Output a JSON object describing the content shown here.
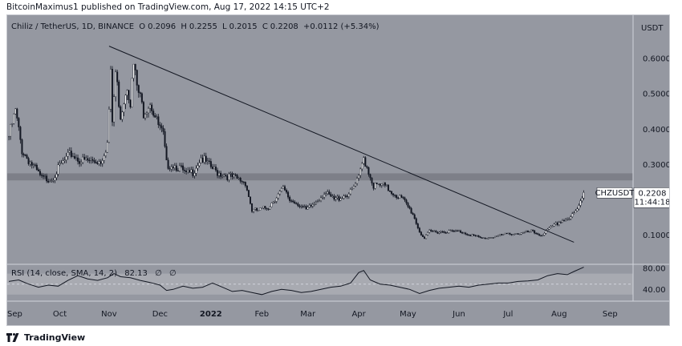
{
  "header": {
    "publisher_line": "BitcoinMaximus1 published on TradingView.com, Aug 17, 2022 14:15 UTC+2"
  },
  "symbol": {
    "name": "Chiliz / TetherUS, 1D, BINANCE",
    "open_label": "O",
    "open": "0.2096",
    "high_label": "H",
    "high": "0.2255",
    "low_label": "L",
    "low": "0.2015",
    "close_label": "C",
    "close": "0.2208",
    "change": "+0.0112 (+5.34%)"
  },
  "price_badge": {
    "ticker": "CHZUSDT",
    "price": "0.2208",
    "countdown": "11:44:18",
    "color": "#ffffff"
  },
  "rsi": {
    "legend": "RSI (14, close, SMA, 14, 2)",
    "value": "82.13",
    "extra1": "∅",
    "extra2": "∅"
  },
  "footer": {
    "brand": "TradingView",
    "logo_icon": "tradingview-logo-icon"
  },
  "colors": {
    "background": "#9598a1",
    "candle_up": "#ffffff",
    "candle_down": "#131722",
    "trendline": "#131722",
    "resistance_zone": "#7d7f88",
    "rsi_band": "#a8aab1",
    "rsi_line": "#131722"
  },
  "chart_data": [
    {
      "type": "candlestick",
      "title": "Chiliz / TetherUS, 1D, BINANCE",
      "ylabel": "USDT",
      "yaxis_ticks": [
        "0.6000",
        "0.5000",
        "0.4000",
        "0.3000",
        "0.1000"
      ],
      "y_tick_values": [
        0.6,
        0.5,
        0.4,
        0.3,
        0.1
      ],
      "ylim": [
        0.0175,
        0.7226
      ],
      "xaxis_ticks": [
        "Sep",
        "Oct",
        "Nov",
        "Dec",
        "2022",
        "Feb",
        "Mar",
        "Apr",
        "May",
        "Jun",
        "Jul",
        "Aug",
        "Sep"
      ],
      "x_tick_days": [
        -1,
        31,
        61,
        92,
        123,
        154,
        182,
        213,
        243,
        274,
        304,
        335,
        366
      ],
      "xlim": [
        -1,
        380
      ],
      "resistance_zone": {
        "low": 0.255,
        "high": 0.275
      },
      "trendline": {
        "start": {
          "day": 61,
          "price": 0.635
        },
        "end": {
          "day": 344,
          "price": 0.08
        }
      },
      "price_series": [
        {
          "day": 0,
          "price": 0.38
        },
        {
          "day": 4,
          "price": 0.45
        },
        {
          "day": 8,
          "price": 0.34
        },
        {
          "day": 14,
          "price": 0.3
        },
        {
          "day": 20,
          "price": 0.26
        },
        {
          "day": 26,
          "price": 0.26
        },
        {
          "day": 32,
          "price": 0.3
        },
        {
          "day": 38,
          "price": 0.33
        },
        {
          "day": 44,
          "price": 0.31
        },
        {
          "day": 50,
          "price": 0.31
        },
        {
          "day": 56,
          "price": 0.31
        },
        {
          "day": 60,
          "price": 0.36
        },
        {
          "day": 62,
          "price": 0.55
        },
        {
          "day": 63,
          "price": 0.42
        },
        {
          "day": 65,
          "price": 0.56
        },
        {
          "day": 68,
          "price": 0.44
        },
        {
          "day": 72,
          "price": 0.53
        },
        {
          "day": 74,
          "price": 0.48
        },
        {
          "day": 76,
          "price": 0.58
        },
        {
          "day": 78,
          "price": 0.52
        },
        {
          "day": 82,
          "price": 0.45
        },
        {
          "day": 86,
          "price": 0.48
        },
        {
          "day": 90,
          "price": 0.42
        },
        {
          "day": 94,
          "price": 0.38
        },
        {
          "day": 96,
          "price": 0.3
        },
        {
          "day": 100,
          "price": 0.3
        },
        {
          "day": 104,
          "price": 0.29
        },
        {
          "day": 108,
          "price": 0.27
        },
        {
          "day": 112,
          "price": 0.28
        },
        {
          "day": 117,
          "price": 0.32
        },
        {
          "day": 121,
          "price": 0.3
        },
        {
          "day": 126,
          "price": 0.28
        },
        {
          "day": 132,
          "price": 0.27
        },
        {
          "day": 138,
          "price": 0.26
        },
        {
          "day": 144,
          "price": 0.25
        },
        {
          "day": 148,
          "price": 0.17
        },
        {
          "day": 152,
          "price": 0.17
        },
        {
          "day": 158,
          "price": 0.18
        },
        {
          "day": 163,
          "price": 0.21
        },
        {
          "day": 167,
          "price": 0.23
        },
        {
          "day": 171,
          "price": 0.2
        },
        {
          "day": 176,
          "price": 0.19
        },
        {
          "day": 181,
          "price": 0.17
        },
        {
          "day": 186,
          "price": 0.19
        },
        {
          "day": 192,
          "price": 0.22
        },
        {
          "day": 198,
          "price": 0.2
        },
        {
          "day": 203,
          "price": 0.21
        },
        {
          "day": 208,
          "price": 0.22
        },
        {
          "day": 213,
          "price": 0.26
        },
        {
          "day": 216,
          "price": 0.32
        },
        {
          "day": 219,
          "price": 0.28
        },
        {
          "day": 222,
          "price": 0.24
        },
        {
          "day": 228,
          "price": 0.24
        },
        {
          "day": 234,
          "price": 0.22
        },
        {
          "day": 240,
          "price": 0.2
        },
        {
          "day": 246,
          "price": 0.16
        },
        {
          "day": 250,
          "price": 0.11
        },
        {
          "day": 253,
          "price": 0.09
        },
        {
          "day": 256,
          "price": 0.11
        },
        {
          "day": 262,
          "price": 0.11
        },
        {
          "day": 268,
          "price": 0.11
        },
        {
          "day": 275,
          "price": 0.11
        },
        {
          "day": 282,
          "price": 0.1
        },
        {
          "day": 288,
          "price": 0.09
        },
        {
          "day": 294,
          "price": 0.095
        },
        {
          "day": 300,
          "price": 0.1
        },
        {
          "day": 306,
          "price": 0.105
        },
        {
          "day": 312,
          "price": 0.105
        },
        {
          "day": 318,
          "price": 0.11
        },
        {
          "day": 324,
          "price": 0.1
        },
        {
          "day": 330,
          "price": 0.12
        },
        {
          "day": 336,
          "price": 0.14
        },
        {
          "day": 342,
          "price": 0.15
        },
        {
          "day": 346,
          "price": 0.17
        },
        {
          "day": 350,
          "price": 0.2208
        }
      ]
    },
    {
      "type": "line",
      "title": "RSI (14, close, SMA, 14, 2)",
      "yaxis_ticks": [
        "80.00",
        "40.00"
      ],
      "y_tick_values": [
        80,
        40
      ],
      "ylim": [
        17.5,
        87.7
      ],
      "band": [
        30,
        70
      ],
      "midline": 50,
      "x": [
        0,
        6,
        12,
        18,
        24,
        30,
        36,
        42,
        48,
        54,
        60,
        64,
        68,
        74,
        80,
        86,
        92,
        96,
        100,
        106,
        112,
        118,
        124,
        130,
        136,
        142,
        148,
        154,
        160,
        166,
        172,
        178,
        184,
        190,
        196,
        202,
        208,
        213,
        216,
        220,
        226,
        232,
        238,
        244,
        250,
        256,
        262,
        268,
        274,
        280,
        286,
        292,
        298,
        304,
        310,
        316,
        322,
        328,
        334,
        340,
        344,
        350
      ],
      "values": [
        55,
        58,
        50,
        44,
        48,
        46,
        57,
        66,
        60,
        57,
        62,
        70,
        64,
        62,
        57,
        53,
        48,
        38,
        40,
        46,
        42,
        44,
        52,
        44,
        36,
        38,
        34,
        30,
        36,
        40,
        38,
        34,
        36,
        40,
        44,
        46,
        52,
        72,
        76,
        58,
        50,
        48,
        44,
        40,
        32,
        38,
        42,
        44,
        46,
        44,
        48,
        50,
        52,
        52,
        55,
        56,
        58,
        66,
        70,
        68,
        74,
        82.13
      ]
    }
  ]
}
